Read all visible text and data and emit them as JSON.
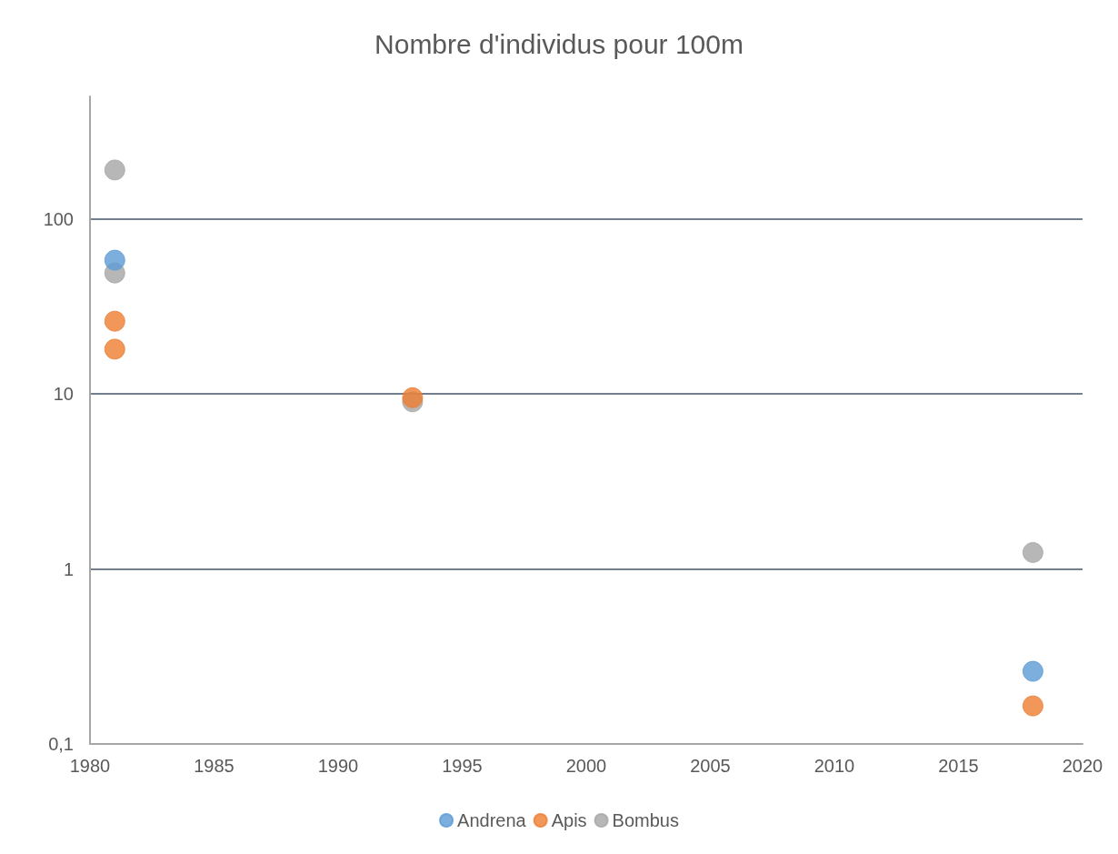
{
  "chart_data": {
    "type": "scatter",
    "title": "Nombre d'individus pour 100m",
    "xlim": [
      1980,
      2020
    ],
    "xticks": [
      1980,
      1985,
      1990,
      1995,
      2000,
      2005,
      2010,
      2015,
      2020
    ],
    "ylim": [
      0.1,
      500
    ],
    "yticks": [
      {
        "value": 0.1,
        "label": "0,1"
      },
      1,
      10,
      100
    ],
    "log": "y",
    "grid": "y",
    "legend": "bottom",
    "marker": "circle",
    "series": [
      {
        "name": "Andrena",
        "color": "#5b9bd5",
        "x": [
          1981,
          2018
        ],
        "values": [
          58,
          0.26
        ]
      },
      {
        "name": "Apis",
        "color": "#ed7d31",
        "x": [
          1981,
          1981,
          1993,
          2018
        ],
        "values": [
          26,
          18,
          9.5,
          0.165
        ]
      },
      {
        "name": "Bombus",
        "color": "#a5a5a5",
        "x": [
          1981,
          1981,
          1993,
          2018
        ],
        "values": [
          190,
          49,
          9.0,
          1.24
        ]
      }
    ]
  }
}
